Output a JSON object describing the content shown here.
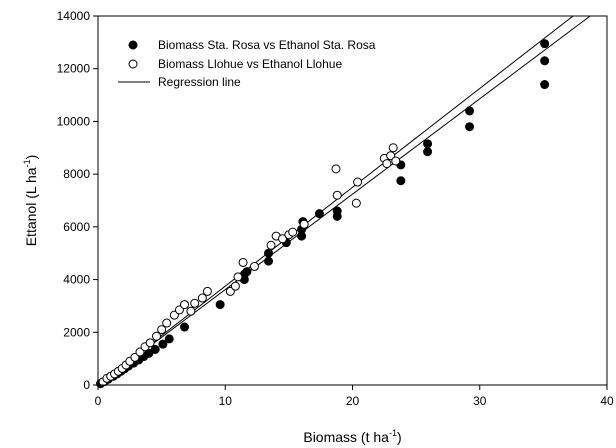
{
  "chart_data": {
    "type": "scatter",
    "title": "",
    "xlabel": "Biomass (t ha",
    "xlabel_sup": "-1",
    "xlabel_close": ")",
    "ylabel": "Ettanol (L ha",
    "ylabel_sup": "-1",
    "ylabel_close": ")",
    "xlim": [
      0,
      40
    ],
    "ylim": [
      0,
      14000
    ],
    "xticks": [
      0,
      10,
      20,
      30,
      40
    ],
    "yticks": [
      0,
      2000,
      4000,
      6000,
      8000,
      10000,
      12000,
      14000
    ],
    "xtick_labels": [
      "0",
      "10",
      "20",
      "30",
      "40"
    ],
    "ytick_labels": [
      "0",
      "2000",
      "4000",
      "6000",
      "8000",
      "10000",
      "12000",
      "14000"
    ],
    "grid": false,
    "legend_position": "top-left",
    "series": [
      {
        "name": "Biomass Sta. Rosa vs Ethanol Sta. Rosa",
        "marker": "filled-circle",
        "color": "#000000",
        "x": [
          0.2,
          0.5,
          0.8,
          1.2,
          1.5,
          1.8,
          2.1,
          2.4,
          2.8,
          3.2,
          3.6,
          4.0,
          4.5,
          5.1,
          5.6,
          6.8,
          9.6,
          11.5,
          11.5,
          11.7,
          13.4,
          13.4,
          14.8,
          16.0,
          16.0,
          16.1,
          17.4,
          18.8,
          18.8,
          23.8,
          23.8,
          25.9,
          25.9,
          29.2,
          29.2,
          35.1,
          35.1,
          35.1
        ],
        "y": [
          50,
          130,
          220,
          330,
          420,
          520,
          620,
          720,
          830,
          950,
          1080,
          1200,
          1350,
          1550,
          1750,
          2200,
          3050,
          4000,
          4200,
          4300,
          4700,
          5000,
          5400,
          5650,
          5900,
          6200,
          6500,
          6400,
          6600,
          7750,
          8350,
          8850,
          9150,
          9800,
          10400,
          11400,
          12300,
          12950
        ]
      },
      {
        "name": "Biomass Llohue vs Ethanol Llohue",
        "marker": "open-circle",
        "color": "#000000",
        "x": [
          0.4,
          0.7,
          1.0,
          1.3,
          1.6,
          1.9,
          2.2,
          2.5,
          2.9,
          3.3,
          3.7,
          4.1,
          4.6,
          5.0,
          5.4,
          6.0,
          6.4,
          6.8,
          7.3,
          7.6,
          8.2,
          8.6,
          10.4,
          10.8,
          11.0,
          11.4,
          12.3,
          13.6,
          14.0,
          14.5,
          15.0,
          15.3,
          16.2,
          18.7,
          18.8,
          20.3,
          20.4,
          22.5,
          22.7,
          23.0,
          23.2,
          23.4
        ],
        "y": [
          120,
          250,
          330,
          420,
          520,
          630,
          760,
          900,
          1050,
          1250,
          1450,
          1600,
          1850,
          2100,
          2350,
          2650,
          2850,
          3050,
          2800,
          3100,
          3300,
          3550,
          3550,
          3750,
          4100,
          4650,
          4500,
          5300,
          5650,
          5550,
          5700,
          5800,
          6100,
          8200,
          7200,
          6900,
          7700,
          8600,
          8400,
          8700,
          9000,
          8500
        ]
      }
    ],
    "regression_lines": [
      {
        "name": "Regression line",
        "slope": 375,
        "intercept": 0,
        "x_range": [
          0,
          40
        ]
      },
      {
        "slope": 362,
        "intercept": 0,
        "x_range": [
          0,
          40
        ]
      }
    ],
    "legend": [
      {
        "label": "Biomass Sta. Rosa vs Ethanol Sta. Rosa",
        "marker": "filled-circle"
      },
      {
        "label": "Biomass Llohue vs Ethanol Llohue",
        "marker": "open-circle"
      },
      {
        "label": "Regression line",
        "marker": "line"
      }
    ]
  }
}
